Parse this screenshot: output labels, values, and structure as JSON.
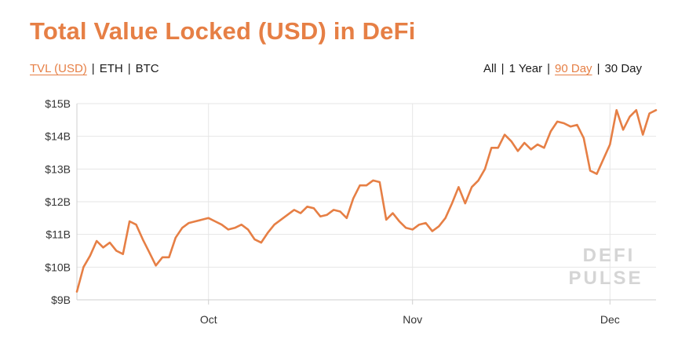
{
  "title": "Total Value Locked (USD) in DeFi",
  "metric_toggle": {
    "items": [
      "TVL (USD)",
      "ETH",
      "BTC"
    ],
    "active": 0
  },
  "range_toggle": {
    "items": [
      "All",
      "1 Year",
      "90 Day",
      "30 Day"
    ],
    "active": 2
  },
  "watermark": {
    "line1": "DEFI",
    "line2": "PULSE"
  },
  "colors": {
    "accent": "#e67f45",
    "line": "#e67f45",
    "grid": "#e6e6e6",
    "axis": "#cfcfcf"
  },
  "chart_data": {
    "type": "line",
    "title": "Total Value Locked (USD) in DeFi",
    "xlabel": "",
    "ylabel": "",
    "ylim": [
      9,
      15
    ],
    "yticks": [
      9,
      10,
      11,
      12,
      13,
      14,
      15
    ],
    "ytick_labels": [
      "$9B",
      "$10B",
      "$11B",
      "$12B",
      "$13B",
      "$14B",
      "$15B"
    ],
    "xticks": [
      {
        "x": 20,
        "label": "Oct"
      },
      {
        "x": 51,
        "label": "Nov"
      },
      {
        "x": 81,
        "label": "Dec"
      }
    ],
    "xlim": [
      0,
      88
    ],
    "grid": true,
    "series": [
      {
        "values": [
          [
            0,
            9.25
          ],
          [
            1,
            10.0
          ],
          [
            2,
            10.35
          ],
          [
            3,
            10.8
          ],
          [
            4,
            10.6
          ],
          [
            5,
            10.75
          ],
          [
            6,
            10.5
          ],
          [
            7,
            10.4
          ],
          [
            8,
            11.4
          ],
          [
            9,
            11.3
          ],
          [
            10,
            10.85
          ],
          [
            11,
            10.45
          ],
          [
            12,
            10.05
          ],
          [
            13,
            10.3
          ],
          [
            14,
            10.3
          ],
          [
            15,
            10.9
          ],
          [
            16,
            11.2
          ],
          [
            17,
            11.35
          ],
          [
            18,
            11.4
          ],
          [
            19,
            11.45
          ],
          [
            20,
            11.5
          ],
          [
            21,
            11.4
          ],
          [
            22,
            11.3
          ],
          [
            23,
            11.15
          ],
          [
            24,
            11.2
          ],
          [
            25,
            11.3
          ],
          [
            26,
            11.15
          ],
          [
            27,
            10.85
          ],
          [
            28,
            10.75
          ],
          [
            29,
            11.05
          ],
          [
            30,
            11.3
          ],
          [
            31,
            11.45
          ],
          [
            32,
            11.6
          ],
          [
            33,
            11.75
          ],
          [
            34,
            11.65
          ],
          [
            35,
            11.85
          ],
          [
            36,
            11.8
          ],
          [
            37,
            11.55
          ],
          [
            38,
            11.6
          ],
          [
            39,
            11.75
          ],
          [
            40,
            11.7
          ],
          [
            41,
            11.5
          ],
          [
            42,
            12.1
          ],
          [
            43,
            12.5
          ],
          [
            44,
            12.5
          ],
          [
            45,
            12.65
          ],
          [
            46,
            12.6
          ],
          [
            47,
            11.45
          ],
          [
            48,
            11.65
          ],
          [
            49,
            11.4
          ],
          [
            50,
            11.2
          ],
          [
            51,
            11.15
          ],
          [
            52,
            11.3
          ],
          [
            53,
            11.35
          ],
          [
            54,
            11.1
          ],
          [
            55,
            11.25
          ],
          [
            56,
            11.5
          ],
          [
            57,
            11.95
          ],
          [
            58,
            12.45
          ],
          [
            59,
            11.95
          ],
          [
            60,
            12.45
          ],
          [
            61,
            12.65
          ],
          [
            62,
            13.0
          ],
          [
            63,
            13.65
          ],
          [
            64,
            13.65
          ],
          [
            65,
            14.05
          ],
          [
            66,
            13.85
          ],
          [
            67,
            13.55
          ],
          [
            68,
            13.8
          ],
          [
            69,
            13.6
          ],
          [
            70,
            13.75
          ],
          [
            71,
            13.65
          ],
          [
            72,
            14.15
          ],
          [
            73,
            14.45
          ],
          [
            74,
            14.4
          ],
          [
            75,
            14.3
          ],
          [
            76,
            14.35
          ],
          [
            77,
            13.95
          ],
          [
            78,
            12.95
          ],
          [
            79,
            12.85
          ],
          [
            80,
            13.3
          ],
          [
            81,
            13.75
          ],
          [
            82,
            14.8
          ],
          [
            83,
            14.2
          ],
          [
            84,
            14.6
          ],
          [
            85,
            14.8
          ],
          [
            86,
            14.05
          ],
          [
            87,
            14.7
          ],
          [
            88,
            14.8
          ]
        ]
      }
    ]
  }
}
